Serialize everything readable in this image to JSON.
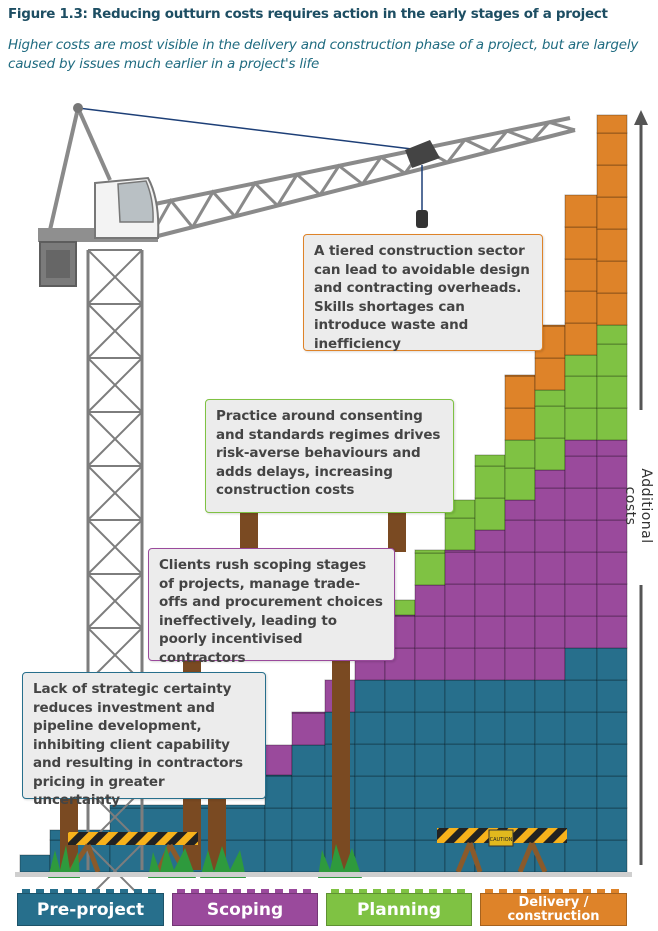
{
  "title": "Figure 1.3: Reducing outturn costs requires action in the early stages of a project",
  "subtitle": "Higher costs are most visible in the delivery and construction phase of a project, but are largely caused by issues much earlier in a project's life",
  "callouts": [
    {
      "phase": "delivery",
      "text": "A tiered construction sector can lead to avoidable design and contracting overheads. Skills shortages can introduce waste and inefficiency"
    },
    {
      "phase": "planning",
      "text": "Practice around consenting and standards regimes drives risk-averse behaviours and adds delays, increasing construction costs"
    },
    {
      "phase": "scoping",
      "text": "Clients rush scoping stages of projects, manage trade-offs and procurement choices ineffectively, leading to poorly incentivised contractors"
    },
    {
      "phase": "pre-project",
      "text": "Lack of strategic certainty reduces investment and pipeline development, inhibiting client capability and resulting in contractors pricing in greater uncertainty"
    }
  ],
  "axis_label": "Additional costs",
  "phases": [
    {
      "label": "Pre-project",
      "color": "#276f8c"
    },
    {
      "label": "Scoping",
      "color": "#9a4a9c"
    },
    {
      "label": "Planning",
      "color": "#7fc243"
    },
    {
      "label": "Delivery / construction",
      "color": "#de8329"
    }
  ],
  "sign_text": "CAUTION"
}
